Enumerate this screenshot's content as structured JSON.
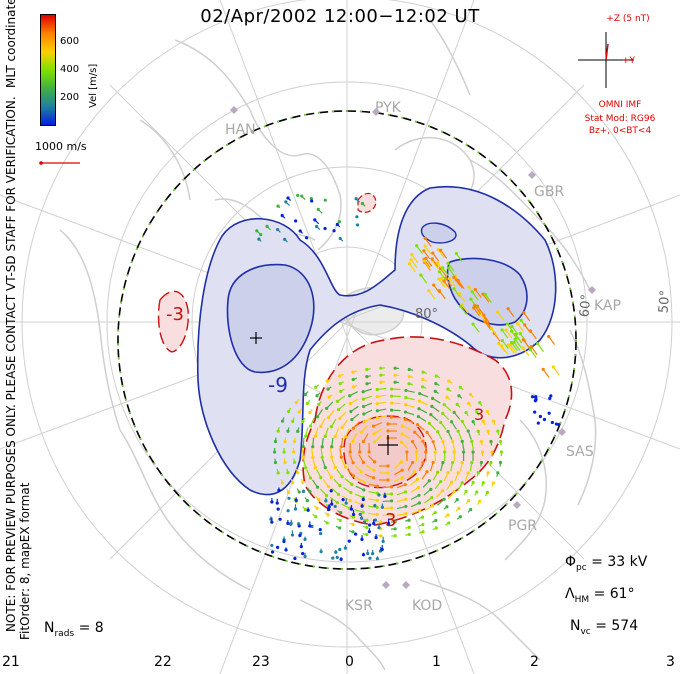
{
  "title": "02/Apr/2002 12:00−12:02 UT",
  "colorbar": {
    "label": "Vel [m/s]",
    "ticks": [
      "600",
      "400",
      "200"
    ],
    "colors": [
      "#e00000",
      "#ff8000",
      "#ffd000",
      "#80e000",
      "#40b040",
      "#2080a0",
      "#0020e0"
    ]
  },
  "coord_label": "MLT coordinates",
  "note": "NOTE: FOR PREVIEW PURPOSES ONLY. PLEASE CONTACT VT-SD STAFF FOR VERIFICATION.",
  "fit_order": "FitOrder: 8, mapEX format",
  "scale_vector": "1000 m/s",
  "imf": {
    "z_label": "+Z (5 nT)",
    "y_label": "+Y",
    "omni": "OMNI IMF",
    "stat_mod": "Stat Mod: RG96",
    "condition": "Bz+, 0<BT<4"
  },
  "stations": [
    "HAN",
    "PYK",
    "GBR",
    "KAP",
    "SAS",
    "PGR",
    "KOD",
    "KSR"
  ],
  "latitude_labels": [
    "80°",
    "60°",
    "50°"
  ],
  "contour_labels": [
    "-3",
    "-9",
    "3",
    "3"
  ],
  "stats": {
    "phi_pc_symbol": "Φ",
    "phi_pc_sub": "pc",
    "phi_pc_value": "= 33 kV",
    "lambda_hm_symbol": "Λ",
    "lambda_hm_sub": "HM",
    "lambda_hm_value": "= 61°",
    "n_vc_symbol": "N",
    "n_vc_sub": "vc",
    "n_vc_value": "= 574",
    "n_rads_symbol": "N",
    "n_rads_sub": "rads",
    "n_rads_value": "= 8"
  },
  "mlt_ticks": [
    "21",
    "22",
    "23",
    "0",
    "1",
    "2",
    "3"
  ],
  "cpcp_kv": 33,
  "hm_boundary_deg": 61,
  "vector_count": 574,
  "radar_count": 8
}
